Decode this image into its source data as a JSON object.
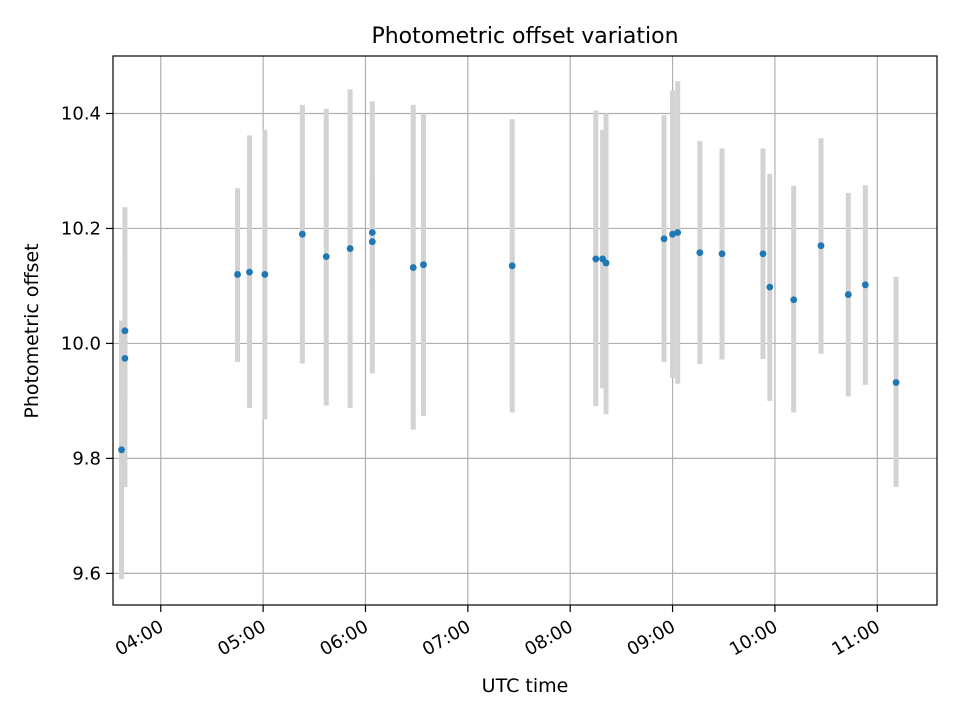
{
  "chart_data": {
    "type": "scatter",
    "title": "Photometric offset variation",
    "xlabel": "UTC time",
    "ylabel": "Photometric offset",
    "x_ticks": [
      "04:00",
      "05:00",
      "06:00",
      "07:00",
      "08:00",
      "09:00",
      "10:00",
      "11:00"
    ],
    "y_ticks": [
      "9.6",
      "9.8",
      "10.0",
      "10.2",
      "10.4"
    ],
    "xlim": [
      "03:32",
      "11:35"
    ],
    "ylim": [
      9.545,
      10.5
    ],
    "grid": true,
    "legend": "none",
    "marker_color": "#1f77b4",
    "errorbar_color": "#d3d3d3",
    "points": [
      {
        "t": "03:37",
        "y": 9.815,
        "ylo": 9.59,
        "yhi": 10.04
      },
      {
        "t": "03:39",
        "y": 9.974,
        "ylo": 9.75,
        "yhi": 10.237
      },
      {
        "t": "03:39",
        "y": 10.022,
        "ylo": 9.9,
        "yhi": 10.15
      },
      {
        "t": "04:45",
        "y": 10.12,
        "ylo": 9.968,
        "yhi": 10.27
      },
      {
        "t": "04:52",
        "y": 10.124,
        "ylo": 9.888,
        "yhi": 10.362
      },
      {
        "t": "05:01",
        "y": 10.12,
        "ylo": 9.868,
        "yhi": 10.372
      },
      {
        "t": "05:23",
        "y": 10.19,
        "ylo": 9.965,
        "yhi": 10.415
      },
      {
        "t": "05:37",
        "y": 10.151,
        "ylo": 9.892,
        "yhi": 10.408
      },
      {
        "t": "05:51",
        "y": 10.165,
        "ylo": 9.888,
        "yhi": 10.442
      },
      {
        "t": "06:04",
        "y": 10.177,
        "ylo": 9.948,
        "yhi": 10.421
      },
      {
        "t": "06:04",
        "y": 10.193,
        "ylo": 10.1,
        "yhi": 10.3
      },
      {
        "t": "06:28",
        "y": 10.132,
        "ylo": 9.85,
        "yhi": 10.415
      },
      {
        "t": "06:34",
        "y": 10.137,
        "ylo": 9.874,
        "yhi": 10.4
      },
      {
        "t": "07:26",
        "y": 10.135,
        "ylo": 9.88,
        "yhi": 10.39
      },
      {
        "t": "08:15",
        "y": 10.147,
        "ylo": 9.891,
        "yhi": 10.405
      },
      {
        "t": "08:19",
        "y": 10.147,
        "ylo": 9.922,
        "yhi": 10.372
      },
      {
        "t": "08:21",
        "y": 10.14,
        "ylo": 9.877,
        "yhi": 10.4
      },
      {
        "t": "08:55",
        "y": 10.182,
        "ylo": 9.968,
        "yhi": 10.397
      },
      {
        "t": "09:00",
        "y": 10.19,
        "ylo": 9.94,
        "yhi": 10.44
      },
      {
        "t": "09:03",
        "y": 10.193,
        "ylo": 9.93,
        "yhi": 10.456
      },
      {
        "t": "09:16",
        "y": 10.158,
        "ylo": 9.964,
        "yhi": 10.352
      },
      {
        "t": "09:29",
        "y": 10.156,
        "ylo": 9.972,
        "yhi": 10.339
      },
      {
        "t": "09:53",
        "y": 10.156,
        "ylo": 9.973,
        "yhi": 10.339
      },
      {
        "t": "09:57",
        "y": 10.098,
        "ylo": 9.9,
        "yhi": 10.295
      },
      {
        "t": "10:11",
        "y": 10.076,
        "ylo": 9.88,
        "yhi": 10.274
      },
      {
        "t": "10:27",
        "y": 10.17,
        "ylo": 9.982,
        "yhi": 10.357
      },
      {
        "t": "10:43",
        "y": 10.085,
        "ylo": 9.908,
        "yhi": 10.262
      },
      {
        "t": "10:53",
        "y": 10.102,
        "ylo": 9.928,
        "yhi": 10.275
      },
      {
        "t": "11:11",
        "y": 9.932,
        "ylo": 9.75,
        "yhi": 10.116
      }
    ]
  }
}
